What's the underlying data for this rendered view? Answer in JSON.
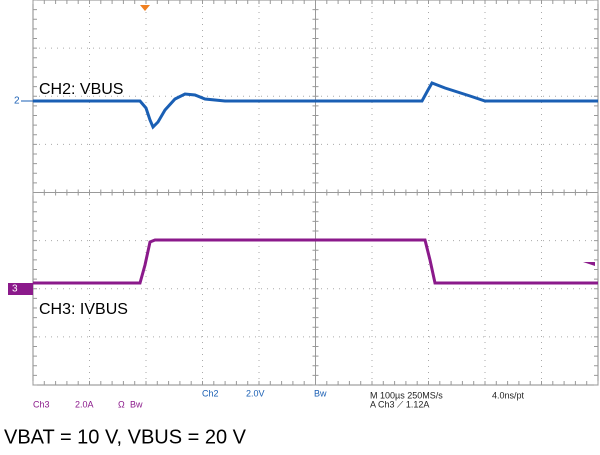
{
  "screen": {
    "channels": [
      {
        "marker": "2",
        "label": "CH2: VBUS"
      },
      {
        "marker": "3",
        "label": "CH3: IVBUS"
      }
    ],
    "status": {
      "ch3": "Ch3",
      "ch3_scale": "2.0A",
      "ch3_ohm": "Ω",
      "ch3_bw": "Bw",
      "ch2": "Ch2",
      "ch2_scale": "2.0V",
      "ch2_bw": "Bw",
      "timebase": "M 100µs 250MS/s",
      "resolution": "4.0ns/pt",
      "trigger": "A  Ch3  ⟋  1.12A"
    }
  },
  "caption": "VBAT = 10 V, VBUS = 20 V"
}
